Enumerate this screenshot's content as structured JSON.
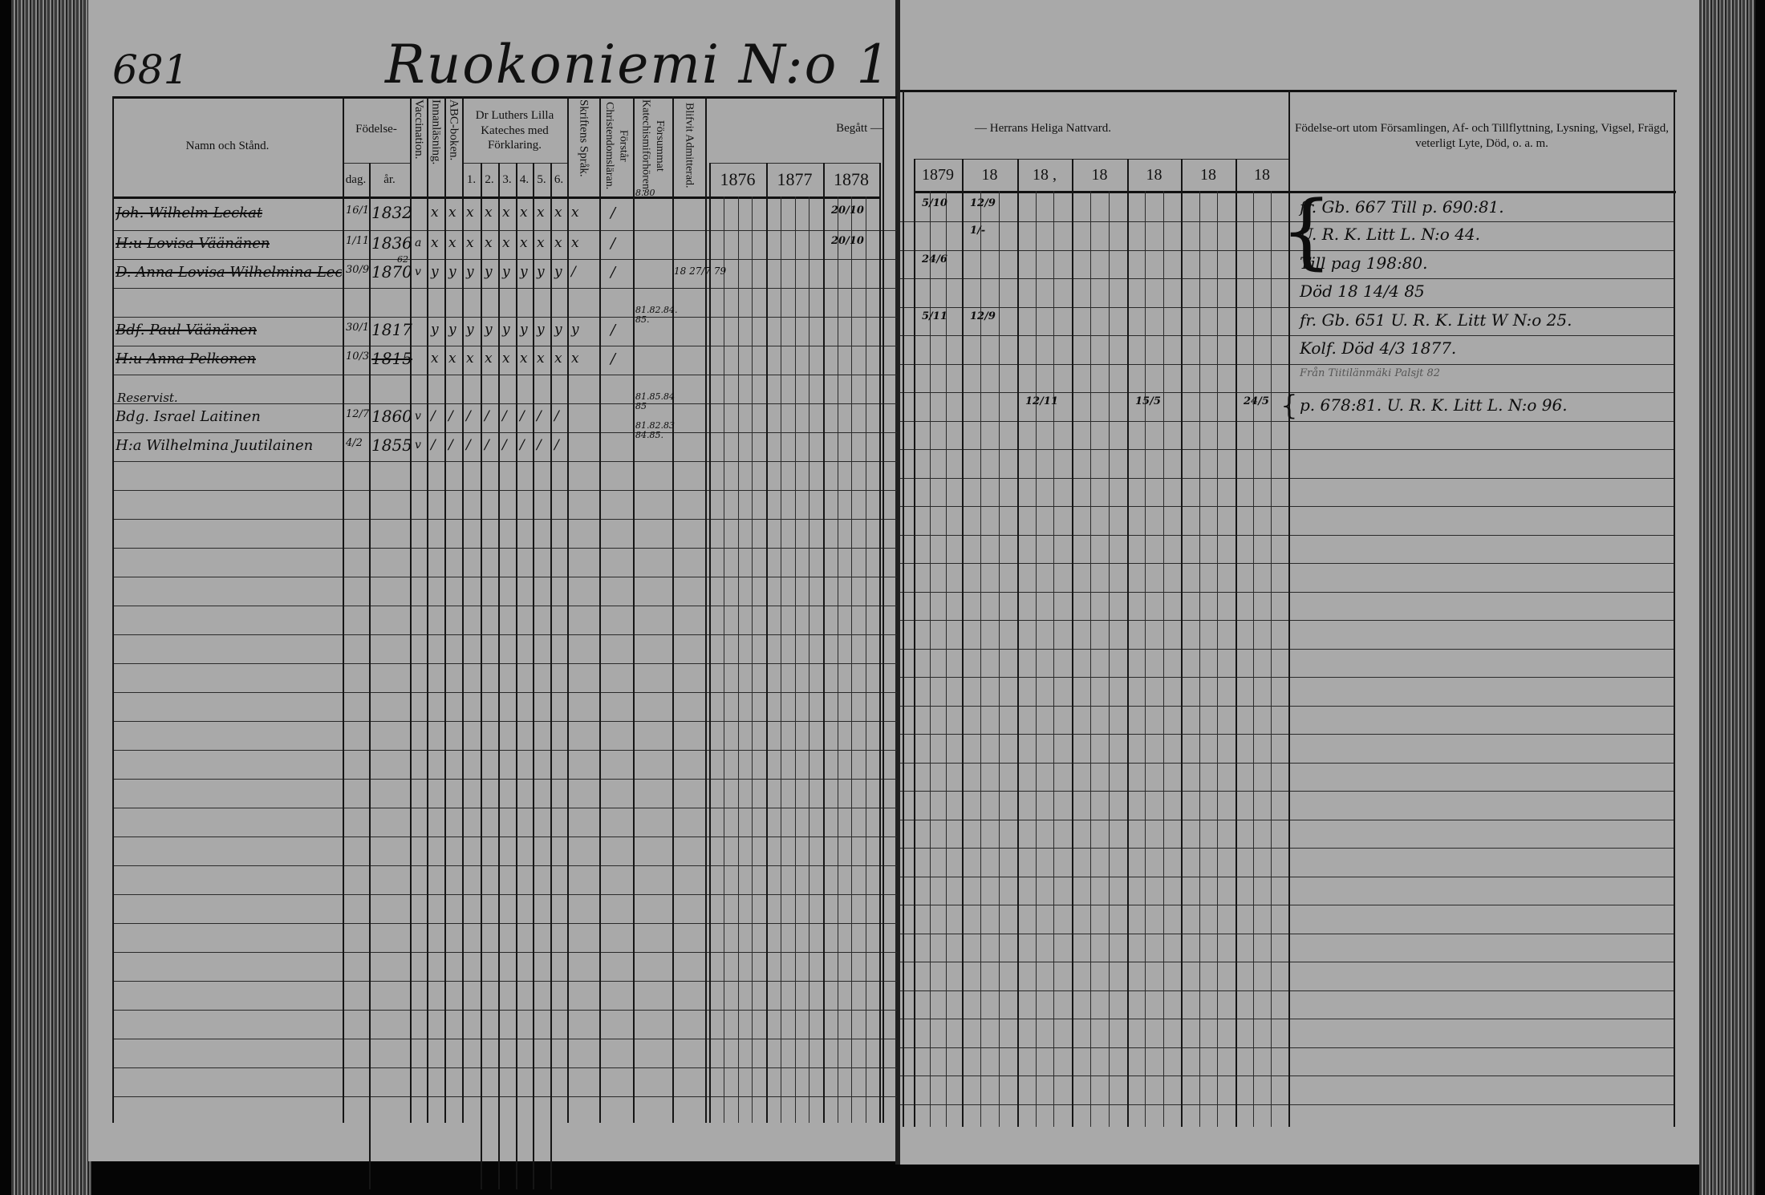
{
  "page_number": "681",
  "village_title": "Ruokoniemi N:o 1",
  "headers": {
    "name": "Namn och Stånd.",
    "birth": "Födelse-",
    "birth_day": "dag.",
    "birth_year": "år.",
    "vaccination": "Vaccination.",
    "reading": "Innanläsning.",
    "abc": "ABC-boken.",
    "catechism": "Dr Luthers Lilla Kateches med Förklaring.",
    "catechism_parts": [
      "1.",
      "2.",
      "3.",
      "4.",
      "5.",
      "6."
    ],
    "scripture": "Skriftens Språk.",
    "understands": "Förstår Christendomsläran.",
    "missed": "Försummat Katechismiförhören.",
    "admitted": "Blifvit Admitterad.",
    "communion_left": "Begått —",
    "communion_right": "— Herrans Heliga Nattvard.",
    "years_left": [
      "1876",
      "1877",
      "1878"
    ],
    "years_right": [
      "1879",
      "18",
      "18 ,",
      "18",
      "18",
      "18",
      "18"
    ],
    "notes": "Födelse-ort utom Församlingen, Af- och Tillflyttning, Lysning, Vigsel, Frägd, veterligt Lyte, Död, o. a. m."
  },
  "entries": [
    {
      "row": 0,
      "prefix": "",
      "name": "Joh. Wilhelm Leckat",
      "struck": true,
      "day": "16/1",
      "year": "1832",
      "vacc": "",
      "marks": [
        "x",
        "x",
        "x",
        "x",
        "x",
        "x",
        "x",
        "x",
        "x"
      ],
      "understands": "/",
      "missed": "8.80",
      "admitted": ""
    },
    {
      "row": 1,
      "prefix": "",
      "name": "H:u Lovisa Väänänen",
      "struck": true,
      "day": "1/11",
      "year": "1836",
      "vacc": "a",
      "marks": [
        "x",
        "x",
        "x",
        "x",
        "x",
        "x",
        "x",
        "x",
        "x"
      ],
      "understands": "/",
      "missed": "",
      "admitted": ""
    },
    {
      "row": 2,
      "prefix": "",
      "name": "D. Anna Lovisa Wilhelmina Leckat",
      "struck": true,
      "day": "30/9",
      "year": "1870",
      "year_note": "62",
      "vacc": "v",
      "marks": [
        "y",
        "y",
        "y",
        "y",
        "y",
        "y",
        "y",
        "y",
        "/"
      ],
      "understands": "/",
      "missed": "",
      "admitted": "18 27/7 79"
    },
    {
      "row": 4,
      "prefix": "",
      "name": "Bdf. Paul Väänänen",
      "struck": true,
      "day": "30/1",
      "year": "1817",
      "vacc": "",
      "marks": [
        "y",
        "y",
        "y",
        "y",
        "y",
        "y",
        "y",
        "y",
        "y"
      ],
      "understands": "/",
      "missed": "81.82.84. 85.",
      "admitted": ""
    },
    {
      "row": 5,
      "prefix": "",
      "name": "H:u Anna Pelkonen",
      "struck": true,
      "day": "10/3",
      "year": "1815",
      "vacc": "",
      "marks": [
        "x",
        "x",
        "x",
        "x",
        "x",
        "x",
        "x",
        "x",
        "x"
      ],
      "understands": "/",
      "missed": "",
      "admitted": ""
    },
    {
      "row": 7,
      "prefix": "Reservist.",
      "name": "Bdg. Israel Laitinen",
      "struck": false,
      "day": "12/7",
      "year": "1860",
      "vacc": "v",
      "marks": [
        "/",
        "/",
        "/",
        "/",
        "/",
        "/",
        "/",
        "/",
        ""
      ],
      "understands": "",
      "missed": "81.85.84 85",
      "admitted": ""
    },
    {
      "row": 8,
      "prefix": "",
      "name": "H:a Wilhelmina Juutilainen",
      "struck": false,
      "day": "4/2",
      "year": "1855",
      "vacc": "v",
      "marks": [
        "/",
        "/",
        "/",
        "/",
        "/",
        "/",
        "/",
        "/",
        ""
      ],
      "understands": "",
      "missed": "81.82.83 84.85.",
      "admitted": ""
    }
  ],
  "communion_marks": [
    {
      "column": "1878",
      "row": 0,
      "value": "20/10"
    },
    {
      "column": "1878",
      "row": 1,
      "value": "20/10"
    },
    {
      "column": "1879",
      "row": 0,
      "value": "5/10"
    },
    {
      "column": "1879",
      "row": 2,
      "value": "24/6"
    },
    {
      "column": "1879",
      "row": 4,
      "value": "5/11"
    },
    {
      "column": "18-2",
      "row": 0,
      "value": "12/9"
    },
    {
      "column": "18-2",
      "row": 1,
      "value": "1/-"
    },
    {
      "column": "18-2",
      "row": 4,
      "value": "12/9"
    },
    {
      "column": "18-3",
      "row": 7,
      "value": "12/11"
    },
    {
      "column": "18-5",
      "row": 7,
      "value": "15/5"
    },
    {
      "column": "18-7",
      "row": 7,
      "value": "24/5"
    }
  ],
  "notes": [
    {
      "row": 0,
      "text": "fr. Gb. 667     Till p. 690:81."
    },
    {
      "row": 1,
      "text": "U. R. K. Litt L. N:o 44."
    },
    {
      "row": 2,
      "text": "Till pag 198:80."
    },
    {
      "row": 3,
      "text": "Död 18 14/4 85"
    },
    {
      "row": 4,
      "text": "fr. Gb. 651  U. R. K. Litt W  N:o 25."
    },
    {
      "row": 5,
      "text": "Kolf. Död 4/3 1877."
    },
    {
      "row": 6,
      "text": "Från Tiitilänmäki  Palsjt 82",
      "faint": true
    },
    {
      "row": 7,
      "text": "p. 678:81. U. R. K. Litt L. N:o 96."
    }
  ],
  "colors": {
    "paper": "#a9a9a9",
    "ink": "#0d0d0d",
    "background": "#050505"
  }
}
